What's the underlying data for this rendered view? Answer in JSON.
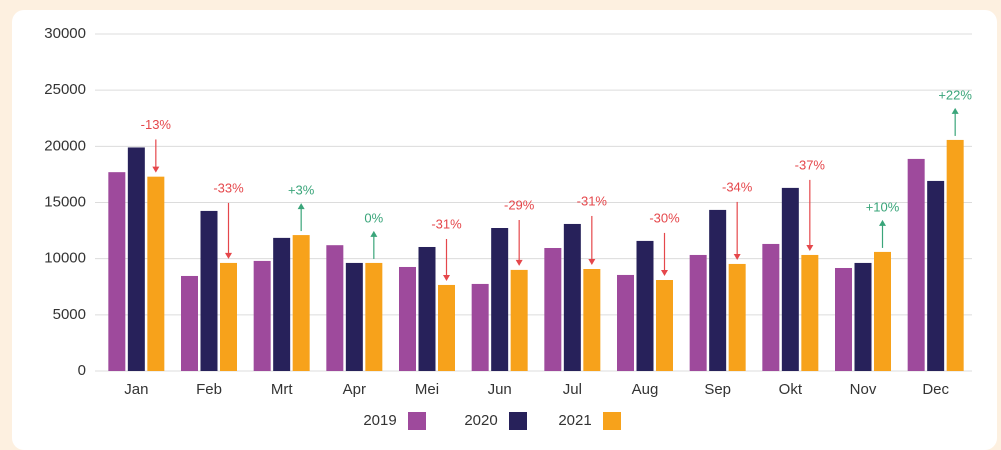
{
  "chart_data": {
    "type": "bar",
    "categories": [
      "Jan",
      "Feb",
      "Mrt",
      "Apr",
      "Mei",
      "Jun",
      "Jul",
      "Aug",
      "Sep",
      "Okt",
      "Nov",
      "Dec"
    ],
    "series": [
      {
        "name": "2019",
        "color": "#9e4a9c",
        "values": [
          17700,
          8460,
          9800,
          11200,
          9260,
          7750,
          10950,
          8550,
          10330,
          11310,
          9170,
          18880
        ]
      },
      {
        "name": "2020",
        "color": "#27215a",
        "values": [
          19900,
          14250,
          11850,
          9620,
          11040,
          12730,
          13090,
          11580,
          14340,
          16300,
          9620,
          16920
        ]
      },
      {
        "name": "2021",
        "color": "#f7a21b",
        "values": [
          17300,
          9620,
          12100,
          9620,
          7660,
          9000,
          9080,
          8100,
          9530,
          10330,
          10600,
          20570
        ]
      }
    ],
    "annotations": [
      "-13%",
      "-33%",
      "+3%",
      "0%",
      "-31%",
      "-29%",
      "-31%",
      "-30%",
      "-34%",
      "-37%",
      "+10%",
      "+22%"
    ],
    "annotation_colors": [
      "#e5474b",
      "#e5474b",
      "#3aa57a",
      "#3aa57a",
      "#e5474b",
      "#e5474b",
      "#e5474b",
      "#e5474b",
      "#e5474b",
      "#e5474b",
      "#3aa57a",
      "#3aa57a"
    ],
    "ylim": [
      0,
      30000
    ],
    "yticks": [
      0,
      5000,
      10000,
      15000,
      20000,
      25000,
      30000
    ],
    "grid": true
  }
}
